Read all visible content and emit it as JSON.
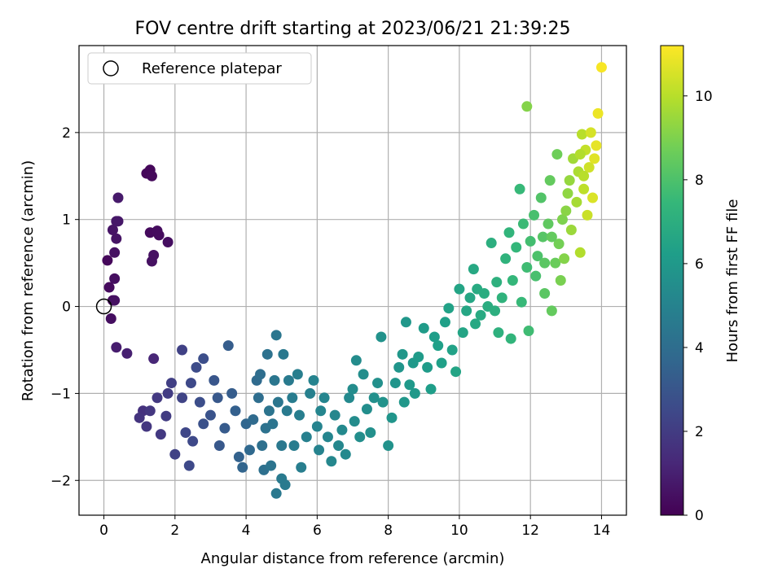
{
  "chart_data": {
    "type": "scatter",
    "title": "FOV centre drift starting at 2023/06/21 21:39:25",
    "xlabel": "Angular distance from reference (arcmin)",
    "ylabel": "Rotation from reference (arcmin)",
    "xlim": [
      -0.7,
      14.7
    ],
    "ylim": [
      -2.4,
      3.0
    ],
    "xticks": [
      0,
      2,
      4,
      6,
      8,
      10,
      12,
      14
    ],
    "yticks": [
      -2,
      -1,
      0,
      1,
      2
    ],
    "grid": true,
    "legend": {
      "placement": "top-left",
      "entries": [
        "Reference platepar"
      ]
    },
    "reference_point": {
      "x": 0,
      "y": 0
    },
    "colorbar": {
      "label": "Hours from first FF file",
      "range": [
        0,
        11.2
      ],
      "ticks": [
        0,
        2,
        4,
        6,
        8,
        10
      ],
      "colormap": "viridis"
    },
    "colormap_stops": [
      "#440154",
      "#482878",
      "#3e4989",
      "#31688e",
      "#26828e",
      "#1f9e89",
      "#35b779",
      "#6ece58",
      "#b5de2b",
      "#fde725"
    ],
    "series_colors": {
      "grid": "#b0b0b0",
      "axis": "#000000",
      "legend_border": "#cccccc"
    },
    "points": [
      [
        0.1,
        0.53,
        0.2
      ],
      [
        0.15,
        0.22,
        0.3
      ],
      [
        0.2,
        -0.14,
        0.4
      ],
      [
        0.25,
        0.07,
        0.3
      ],
      [
        0.3,
        0.32,
        0.4
      ],
      [
        0.3,
        0.62,
        0.5
      ],
      [
        0.25,
        0.88,
        0.6
      ],
      [
        0.35,
        0.78,
        0.6
      ],
      [
        0.35,
        0.98,
        0.7
      ],
      [
        0.4,
        0.98,
        0.7
      ],
      [
        0.4,
        1.25,
        0.8
      ],
      [
        0.35,
        -0.47,
        0.9
      ],
      [
        0.65,
        -0.54,
        1.0
      ],
      [
        0.3,
        0.07,
        0.5
      ],
      [
        1.2,
        1.53,
        0.2
      ],
      [
        1.3,
        1.57,
        0.2
      ],
      [
        1.35,
        1.5,
        0.25
      ],
      [
        1.3,
        0.85,
        0.3
      ],
      [
        1.5,
        0.87,
        0.35
      ],
      [
        1.55,
        0.82,
        0.35
      ],
      [
        1.8,
        0.74,
        0.4
      ],
      [
        1.4,
        0.59,
        0.5
      ],
      [
        1.35,
        0.52,
        0.5
      ],
      [
        1.4,
        -0.6,
        1.2
      ],
      [
        1.1,
        -1.2,
        1.6
      ],
      [
        1.0,
        -1.28,
        1.7
      ],
      [
        1.2,
        -1.38,
        1.8
      ],
      [
        1.3,
        -1.2,
        1.8
      ],
      [
        1.5,
        -1.05,
        1.9
      ],
      [
        1.6,
        -1.47,
        1.9
      ],
      [
        1.75,
        -1.26,
        2.0
      ],
      [
        1.8,
        -1.0,
        2.0
      ],
      [
        1.9,
        -0.88,
        2.1
      ],
      [
        2.0,
        -1.7,
        2.2
      ],
      [
        2.2,
        -0.5,
        2.2
      ],
      [
        2.2,
        -1.05,
        2.3
      ],
      [
        2.3,
        -1.45,
        2.4
      ],
      [
        2.4,
        -1.83,
        2.5
      ],
      [
        2.5,
        -1.55,
        2.5
      ],
      [
        2.45,
        -0.88,
        2.5
      ],
      [
        2.6,
        -0.7,
        2.6
      ],
      [
        2.7,
        -1.1,
        2.7
      ],
      [
        2.8,
        -0.6,
        2.7
      ],
      [
        2.8,
        -1.35,
        2.8
      ],
      [
        3.0,
        -1.25,
        2.9
      ],
      [
        3.1,
        -0.85,
        3.0
      ],
      [
        3.2,
        -1.05,
        3.1
      ],
      [
        3.25,
        -1.6,
        3.1
      ],
      [
        3.4,
        -1.4,
        3.2
      ],
      [
        3.5,
        -0.45,
        3.3
      ],
      [
        3.6,
        -1.0,
        3.3
      ],
      [
        3.7,
        -1.2,
        3.4
      ],
      [
        3.8,
        -1.73,
        3.5
      ],
      [
        3.9,
        -1.85,
        3.6
      ],
      [
        4.0,
        -1.35,
        3.7
      ],
      [
        4.1,
        -1.65,
        3.8
      ],
      [
        4.2,
        -1.3,
        3.9
      ],
      [
        4.3,
        -0.85,
        3.9
      ],
      [
        4.4,
        -0.78,
        4.0
      ],
      [
        4.35,
        -1.05,
        4.0
      ],
      [
        4.45,
        -1.6,
        4.1
      ],
      [
        4.5,
        -1.88,
        4.1
      ],
      [
        4.55,
        -1.4,
        4.2
      ],
      [
        4.6,
        -0.55,
        4.2
      ],
      [
        4.65,
        -1.2,
        4.3
      ],
      [
        4.7,
        -1.83,
        4.3
      ],
      [
        4.75,
        -1.35,
        4.3
      ],
      [
        4.8,
        -0.85,
        4.4
      ],
      [
        4.85,
        -0.33,
        4.4
      ],
      [
        4.9,
        -1.1,
        4.4
      ],
      [
        5.0,
        -1.6,
        4.5
      ],
      [
        5.05,
        -0.55,
        4.5
      ],
      [
        4.85,
        -2.15,
        4.5
      ],
      [
        5.0,
        -1.98,
        4.6
      ],
      [
        5.1,
        -2.05,
        4.6
      ],
      [
        5.15,
        -1.2,
        4.6
      ],
      [
        5.2,
        -0.85,
        4.6
      ],
      [
        5.3,
        -1.05,
        4.7
      ],
      [
        5.35,
        -1.6,
        4.7
      ],
      [
        5.45,
        -0.78,
        4.8
      ],
      [
        5.5,
        -1.25,
        4.8
      ],
      [
        5.55,
        -1.85,
        4.8
      ],
      [
        5.7,
        -1.5,
        4.9
      ],
      [
        5.8,
        -1.0,
        4.9
      ],
      [
        5.9,
        -0.85,
        5.0
      ],
      [
        6.0,
        -1.38,
        5.0
      ],
      [
        6.05,
        -1.65,
        5.0
      ],
      [
        6.1,
        -1.2,
        5.1
      ],
      [
        6.2,
        -1.05,
        5.1
      ],
      [
        6.3,
        -1.5,
        5.1
      ],
      [
        6.4,
        -1.78,
        5.2
      ],
      [
        6.5,
        -1.25,
        5.2
      ],
      [
        6.6,
        -1.6,
        5.2
      ],
      [
        6.7,
        -1.42,
        5.3
      ],
      [
        6.8,
        -1.7,
        5.3
      ],
      [
        6.9,
        -1.05,
        5.3
      ],
      [
        7.0,
        -0.95,
        5.4
      ],
      [
        7.05,
        -1.32,
        5.4
      ],
      [
        7.1,
        -0.62,
        5.4
      ],
      [
        7.2,
        -1.5,
        5.5
      ],
      [
        7.3,
        -0.78,
        5.5
      ],
      [
        7.4,
        -1.18,
        5.5
      ],
      [
        7.5,
        -1.45,
        5.6
      ],
      [
        7.6,
        -1.05,
        5.6
      ],
      [
        7.7,
        -0.88,
        5.6
      ],
      [
        7.8,
        -0.35,
        5.7
      ],
      [
        7.85,
        -1.1,
        5.7
      ],
      [
        8.0,
        -1.6,
        5.7
      ],
      [
        8.1,
        -1.28,
        5.8
      ],
      [
        8.2,
        -0.88,
        5.8
      ],
      [
        8.3,
        -0.7,
        5.8
      ],
      [
        8.4,
        -0.55,
        5.9
      ],
      [
        8.45,
        -1.1,
        5.9
      ],
      [
        8.5,
        -0.18,
        5.9
      ],
      [
        8.6,
        -0.9,
        6.0
      ],
      [
        8.7,
        -0.65,
        6.0
      ],
      [
        8.75,
        -1.0,
        6.0
      ],
      [
        8.85,
        -0.58,
        6.1
      ],
      [
        9.0,
        -0.25,
        6.1
      ],
      [
        9.1,
        -0.7,
        6.1
      ],
      [
        9.2,
        -0.95,
        6.2
      ],
      [
        9.3,
        -0.35,
        6.2
      ],
      [
        9.4,
        -0.45,
        6.3
      ],
      [
        9.5,
        -0.65,
        6.3
      ],
      [
        9.6,
        -0.18,
        6.3
      ],
      [
        9.7,
        -0.02,
        6.4
      ],
      [
        9.8,
        -0.5,
        6.4
      ],
      [
        9.9,
        -0.75,
        6.5
      ],
      [
        10.0,
        0.2,
        6.5
      ],
      [
        10.1,
        -0.3,
        6.5
      ],
      [
        10.2,
        -0.05,
        6.6
      ],
      [
        10.3,
        0.1,
        6.6
      ],
      [
        10.4,
        0.43,
        6.7
      ],
      [
        10.45,
        -0.2,
        6.7
      ],
      [
        10.5,
        0.2,
        6.8
      ],
      [
        10.6,
        -0.1,
        6.8
      ],
      [
        10.7,
        0.15,
        6.9
      ],
      [
        10.8,
        0.0,
        6.9
      ],
      [
        10.9,
        0.73,
        7.0
      ],
      [
        11.0,
        -0.05,
        7.0
      ],
      [
        11.05,
        0.28,
        7.1
      ],
      [
        11.1,
        -0.3,
        7.1
      ],
      [
        11.2,
        0.1,
        7.2
      ],
      [
        11.3,
        0.55,
        7.2
      ],
      [
        11.4,
        0.85,
        7.3
      ],
      [
        11.45,
        -0.37,
        7.3
      ],
      [
        11.5,
        0.3,
        7.4
      ],
      [
        11.6,
        0.68,
        7.4
      ],
      [
        11.7,
        1.35,
        7.5
      ],
      [
        11.75,
        0.05,
        7.5
      ],
      [
        11.8,
        0.95,
        7.6
      ],
      [
        11.9,
        0.45,
        7.7
      ],
      [
        11.95,
        -0.28,
        7.7
      ],
      [
        12.0,
        0.75,
        7.8
      ],
      [
        12.1,
        1.05,
        7.9
      ],
      [
        12.15,
        0.35,
        7.9
      ],
      [
        12.2,
        0.58,
        8.0
      ],
      [
        12.3,
        1.25,
        8.1
      ],
      [
        12.35,
        0.8,
        8.2
      ],
      [
        12.4,
        0.15,
        8.3
      ],
      [
        12.5,
        0.95,
        8.4
      ],
      [
        12.55,
        1.45,
        8.5
      ],
      [
        12.6,
        -0.05,
        8.5
      ],
      [
        12.7,
        0.5,
        8.6
      ],
      [
        12.75,
        1.75,
        8.7
      ],
      [
        12.8,
        0.72,
        8.8
      ],
      [
        12.85,
        0.3,
        8.9
      ],
      [
        12.9,
        1.0,
        9.0
      ],
      [
        11.9,
        2.3,
        9.1
      ],
      [
        12.95,
        0.55,
        9.1
      ],
      [
        13.0,
        1.1,
        9.2
      ],
      [
        13.05,
        1.3,
        9.3
      ],
      [
        13.1,
        1.45,
        9.4
      ],
      [
        13.15,
        0.88,
        9.5
      ],
      [
        13.2,
        1.7,
        9.6
      ],
      [
        13.3,
        1.2,
        9.7
      ],
      [
        13.35,
        1.55,
        9.8
      ],
      [
        13.4,
        0.62,
        9.9
      ],
      [
        13.45,
        1.98,
        10.0
      ],
      [
        13.5,
        1.35,
        10.1
      ],
      [
        13.55,
        1.8,
        10.2
      ],
      [
        13.6,
        1.05,
        10.3
      ],
      [
        13.65,
        1.6,
        10.4
      ],
      [
        13.7,
        2.0,
        10.5
      ],
      [
        13.75,
        1.25,
        10.6
      ],
      [
        13.8,
        1.7,
        10.7
      ],
      [
        13.85,
        1.85,
        10.8
      ],
      [
        13.9,
        2.22,
        10.9
      ],
      [
        14.0,
        2.75,
        11.1
      ],
      [
        13.5,
        1.5,
        10.0
      ],
      [
        13.4,
        1.75,
        9.9
      ],
      [
        12.6,
        0.8,
        8.5
      ],
      [
        12.4,
        0.5,
        8.3
      ]
    ]
  }
}
